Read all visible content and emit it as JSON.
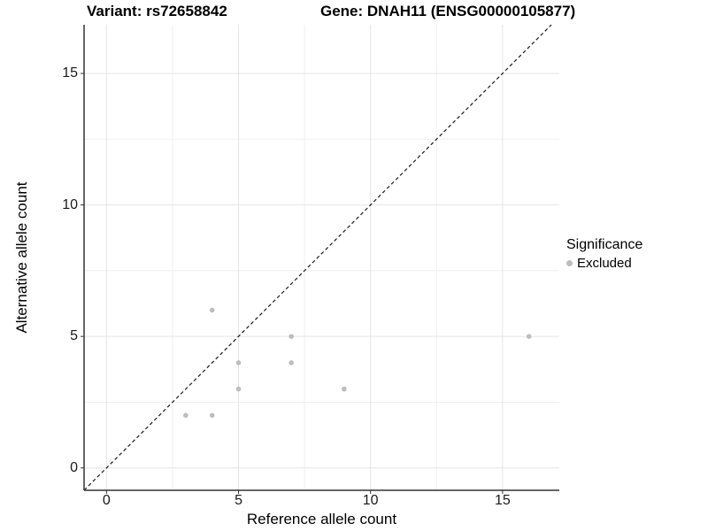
{
  "titles": {
    "left": "Variant: rs72658842",
    "right": "Gene: DNAH11 (ENSG00000105877)"
  },
  "chart_data": {
    "type": "scatter",
    "title_left": "Variant: rs72658842",
    "title_right": "Gene: DNAH11 (ENSG00000105877)",
    "xlabel": "Reference allele count",
    "ylabel": "Alternative allele count",
    "xlim": [
      -0.85,
      17.15
    ],
    "ylim": [
      -0.85,
      16.85
    ],
    "x_major_ticks": [
      0,
      5,
      10,
      15
    ],
    "y_major_ticks": [
      0,
      5,
      10,
      15
    ],
    "x_minor_gridlines": [
      2.5,
      7.5,
      12.5
    ],
    "y_minor_gridlines": [
      2.5,
      7.5,
      12.5
    ],
    "grid": true,
    "series": [
      {
        "name": "Excluded",
        "color": "#bdbdbd",
        "points": [
          {
            "x": 3,
            "y": 2
          },
          {
            "x": 4,
            "y": 2
          },
          {
            "x": 4,
            "y": 6
          },
          {
            "x": 5,
            "y": 3
          },
          {
            "x": 5,
            "y": 4
          },
          {
            "x": 7,
            "y": 4
          },
          {
            "x": 7,
            "y": 5
          },
          {
            "x": 9,
            "y": 3
          },
          {
            "x": 16,
            "y": 5
          }
        ]
      }
    ],
    "identity_line": {
      "slope": 1,
      "intercept": 0,
      "style": "dashed",
      "color": "#1a1a1a"
    },
    "legend": {
      "position": "right",
      "title": "Significance",
      "items": [
        {
          "label": "Excluded",
          "color": "#bdbdbd"
        }
      ]
    },
    "colors": {
      "major_grid": "#e4e4e4",
      "minor_grid": "#efefef",
      "axis_line": "#333333",
      "point": "#bdbdbd"
    }
  }
}
